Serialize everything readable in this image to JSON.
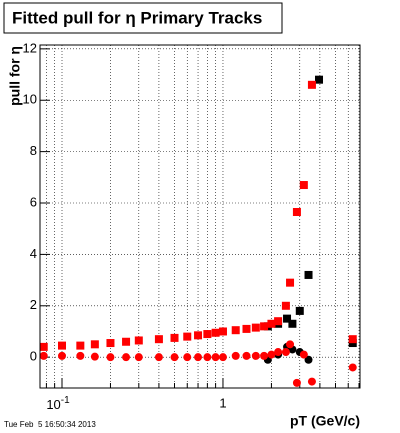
{
  "chart_data": {
    "type": "scatter",
    "title": "Fitted pull for η  Primary Tracks",
    "x_label": "pT (GeV/c)",
    "y_label": "pull for η",
    "timestamp": "Tue Feb  5 16:50:34 2013",
    "xscale": "log",
    "xlim": [
      0.073,
      7.1
    ],
    "ylim": [
      -1.2,
      12.15
    ],
    "xticks": [
      {
        "value": 0.1,
        "label": "10",
        "exponent": "-1"
      },
      1
    ],
    "xminor": [
      0.08,
      0.09,
      0.2,
      0.3,
      0.4,
      0.5,
      0.6,
      0.7,
      0.8,
      0.9,
      2,
      3,
      4,
      5,
      6,
      7
    ],
    "yticks": [
      0,
      2,
      4,
      6,
      8,
      10,
      12
    ],
    "grid": true,
    "series": [
      {
        "color": "#000000",
        "marker": "square",
        "x": [
          1.9,
          2.2,
          2.5,
          2.7,
          3.0,
          3.4,
          3.95,
          6.4
        ],
        "values": [
          1.2,
          1.3,
          1.5,
          1.3,
          1.8,
          3.2,
          10.8,
          0.55
        ]
      },
      {
        "color": "#000000",
        "marker": "circle",
        "x": [
          1.9,
          2.2,
          2.5,
          2.7,
          3.0,
          3.4
        ],
        "values": [
          -0.1,
          0.1,
          0.4,
          0.3,
          0.2,
          -0.1
        ]
      },
      {
        "color": "#ff0000",
        "marker": "square",
        "x": [
          0.077,
          0.1,
          0.13,
          0.16,
          0.2,
          0.25,
          0.3,
          0.4,
          0.5,
          0.6,
          0.7,
          0.8,
          0.9,
          1.0,
          1.2,
          1.4,
          1.6,
          1.8,
          2.0,
          2.2,
          2.46,
          2.61,
          2.88,
          3.18,
          3.57,
          6.4
        ],
        "values": [
          0.4,
          0.45,
          0.45,
          0.5,
          0.55,
          0.6,
          0.65,
          0.7,
          0.75,
          0.8,
          0.85,
          0.9,
          0.95,
          1.0,
          1.05,
          1.1,
          1.15,
          1.2,
          1.3,
          1.4,
          2.0,
          2.9,
          5.65,
          6.7,
          10.6,
          0.7
        ]
      },
      {
        "color": "#ff0000",
        "marker": "circle",
        "x": [
          0.077,
          0.1,
          0.13,
          0.16,
          0.2,
          0.25,
          0.3,
          0.4,
          0.5,
          0.6,
          0.7,
          0.8,
          0.9,
          1.0,
          1.2,
          1.4,
          1.6,
          1.8,
          2.0,
          2.2,
          2.46,
          2.61,
          2.88,
          3.18,
          3.57,
          6.4
        ],
        "values": [
          0.05,
          0.05,
          0.05,
          0.02,
          0,
          0,
          0,
          0,
          0,
          0,
          0,
          0,
          0,
          0,
          0.05,
          0.05,
          0.05,
          0.05,
          0.1,
          0.2,
          0.2,
          0.5,
          -1.0,
          0.1,
          -0.95,
          -0.4
        ]
      }
    ]
  }
}
